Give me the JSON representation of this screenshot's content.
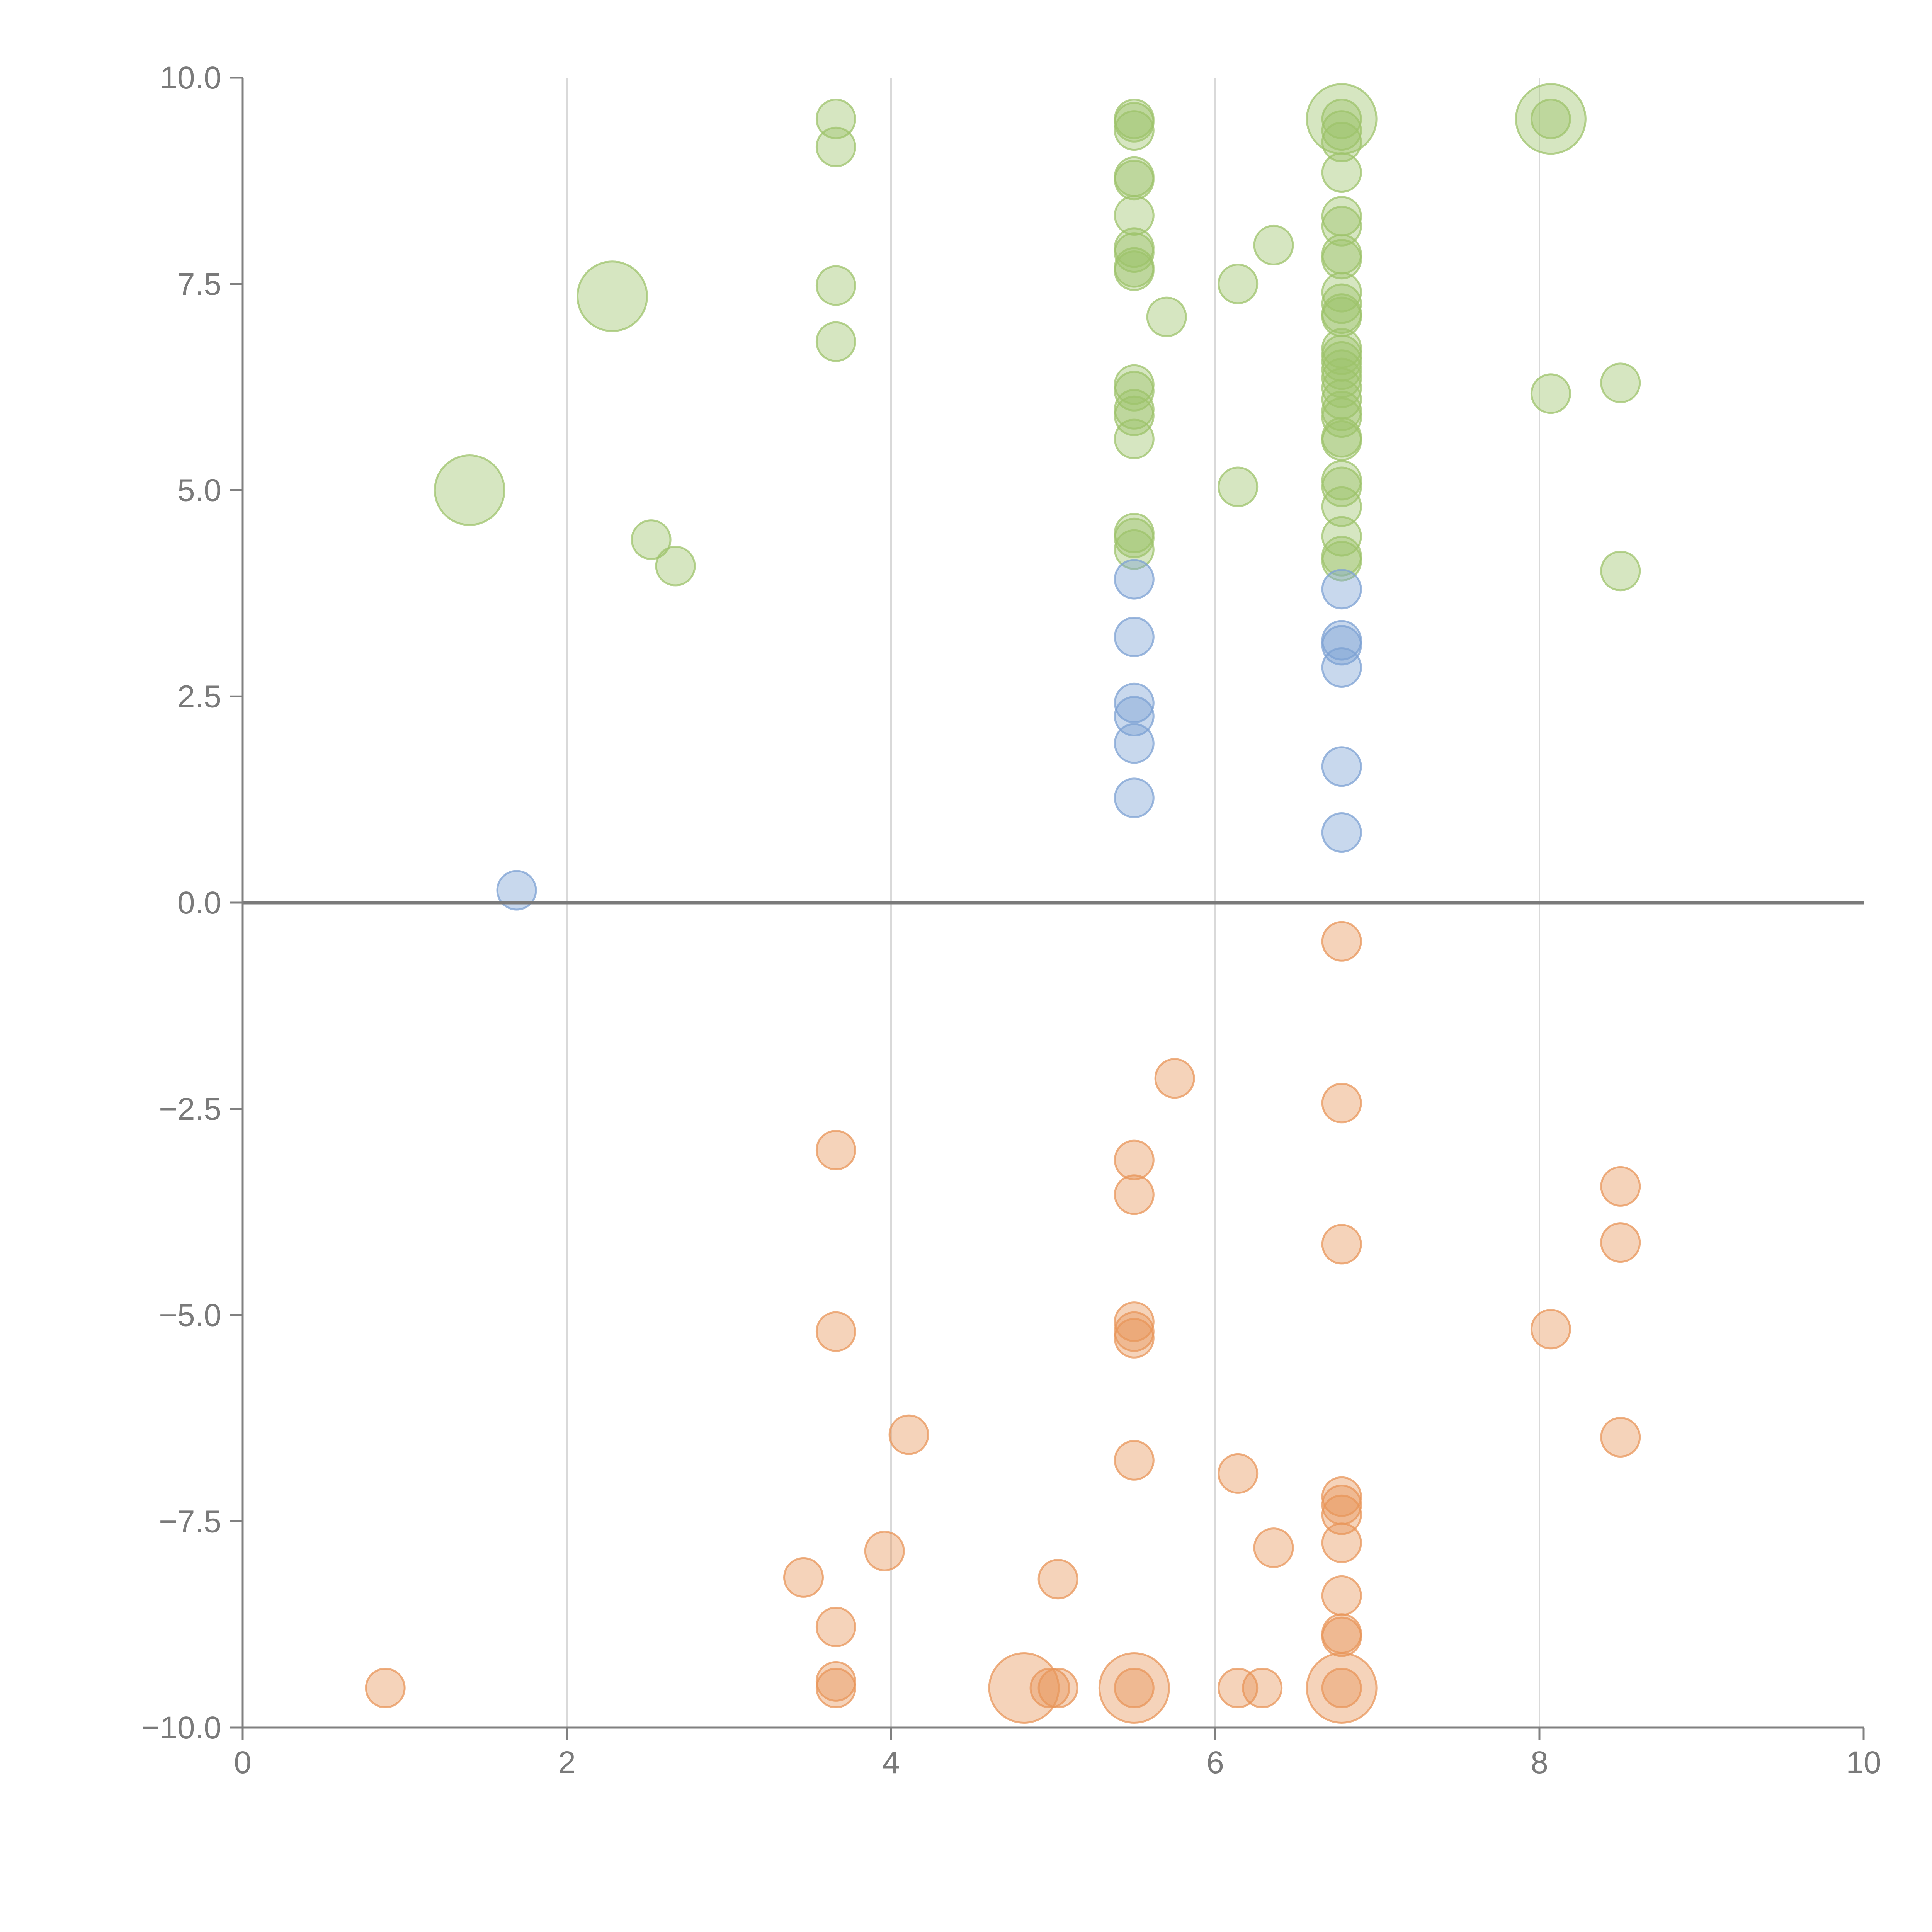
{
  "chart_data": {
    "type": "scatter",
    "title": "",
    "xlabel": "",
    "ylabel": "",
    "xlim": [
      0,
      10
    ],
    "ylim": [
      -10,
      10
    ],
    "x_ticks": [
      "0",
      "2",
      "4",
      "6",
      "8",
      "10"
    ],
    "y_ticks": [
      "10.0",
      "7.5",
      "5.0",
      "2.5",
      "0.0",
      "−2.5",
      "−5.0",
      "−7.5",
      "−10.0"
    ],
    "x_tick_values": [
      0,
      2,
      4,
      6,
      8,
      10
    ],
    "y_tick_values": [
      10,
      7.5,
      5,
      2.5,
      0,
      -2.5,
      -5,
      -7.5,
      -10
    ],
    "vertical_grid": true,
    "zero_line": true,
    "legend": "none",
    "colors": {
      "green": "#9dc36b",
      "blue": "#7da2d3",
      "orange": "#e8965a",
      "axis": "#808080",
      "grid": "#d9d9d9"
    },
    "series": [
      {
        "color": "#9dc36b",
        "points": [
          [
            1.4,
            5.0,
            2
          ],
          [
            2.28,
            7.35,
            2
          ],
          [
            2.52,
            4.4,
            1
          ],
          [
            2.67,
            4.08,
            1
          ],
          [
            3.66,
            9.5,
            1
          ],
          [
            3.66,
            9.16,
            1
          ],
          [
            3.66,
            7.48,
            1
          ],
          [
            3.66,
            6.8,
            1
          ],
          [
            5.5,
            9.5,
            1
          ],
          [
            5.5,
            9.46,
            1
          ],
          [
            5.5,
            9.36,
            1
          ],
          [
            5.5,
            8.8,
            1
          ],
          [
            5.5,
            8.76,
            1
          ],
          [
            5.5,
            8.33,
            1
          ],
          [
            5.5,
            7.94,
            1
          ],
          [
            5.5,
            7.88,
            1
          ],
          [
            5.5,
            7.7,
            1
          ],
          [
            5.5,
            7.66,
            1
          ],
          [
            5.5,
            6.28,
            1
          ],
          [
            5.5,
            6.2,
            1
          ],
          [
            5.5,
            5.98,
            1
          ],
          [
            5.5,
            5.9,
            1
          ],
          [
            5.5,
            5.62,
            1
          ],
          [
            5.5,
            4.48,
            1
          ],
          [
            5.5,
            4.42,
            1
          ],
          [
            5.5,
            4.28,
            1
          ],
          [
            5.7,
            7.1,
            1
          ],
          [
            6.14,
            7.5,
            1
          ],
          [
            6.14,
            5.04,
            1
          ],
          [
            6.36,
            7.97,
            1
          ],
          [
            6.78,
            9.5,
            2
          ],
          [
            6.78,
            9.5,
            1
          ],
          [
            6.78,
            9.36,
            1
          ],
          [
            6.78,
            9.22,
            1
          ],
          [
            6.78,
            8.85,
            1
          ],
          [
            6.78,
            8.32,
            1
          ],
          [
            6.78,
            8.2,
            1
          ],
          [
            6.78,
            7.86,
            1
          ],
          [
            6.78,
            7.8,
            1
          ],
          [
            6.78,
            7.4,
            1
          ],
          [
            6.78,
            7.26,
            1
          ],
          [
            6.78,
            7.14,
            1
          ],
          [
            6.78,
            7.1,
            1
          ],
          [
            6.78,
            6.72,
            1
          ],
          [
            6.78,
            6.64,
            1
          ],
          [
            6.78,
            6.56,
            1
          ],
          [
            6.78,
            6.46,
            1
          ],
          [
            6.78,
            6.36,
            1
          ],
          [
            6.78,
            6.24,
            1
          ],
          [
            6.78,
            6.1,
            1
          ],
          [
            6.78,
            5.96,
            1
          ],
          [
            6.78,
            5.88,
            1
          ],
          [
            6.78,
            5.64,
            1
          ],
          [
            6.78,
            5.6,
            1
          ],
          [
            6.78,
            5.12,
            1
          ],
          [
            6.78,
            5.04,
            1
          ],
          [
            6.78,
            4.8,
            1
          ],
          [
            6.78,
            4.44,
            1
          ],
          [
            6.78,
            4.2,
            1
          ],
          [
            6.78,
            4.14,
            1
          ],
          [
            8.07,
            9.5,
            2
          ],
          [
            8.07,
            9.5,
            1
          ],
          [
            8.07,
            6.17,
            1
          ],
          [
            8.5,
            6.3,
            1
          ],
          [
            8.5,
            4.02,
            1
          ]
        ]
      },
      {
        "color": "#7da2d3",
        "points": [
          [
            1.69,
            0.15,
            1
          ],
          [
            5.5,
            3.92,
            1
          ],
          [
            5.5,
            3.22,
            1
          ],
          [
            5.5,
            2.42,
            1
          ],
          [
            5.5,
            2.26,
            1
          ],
          [
            5.5,
            1.93,
            1
          ],
          [
            5.5,
            1.27,
            1
          ],
          [
            6.78,
            3.8,
            1
          ],
          [
            6.78,
            3.18,
            1
          ],
          [
            6.78,
            3.12,
            1
          ],
          [
            6.78,
            2.85,
            1
          ],
          [
            6.78,
            1.65,
            1
          ],
          [
            6.78,
            0.85,
            1
          ]
        ]
      },
      {
        "color": "#e8965a",
        "points": [
          [
            0.88,
            -9.52,
            1
          ],
          [
            3.46,
            -8.18,
            1
          ],
          [
            3.66,
            -3.0,
            1
          ],
          [
            3.66,
            -5.2,
            1
          ],
          [
            3.66,
            -8.78,
            1
          ],
          [
            3.66,
            -9.44,
            1
          ],
          [
            3.66,
            -9.52,
            1
          ],
          [
            3.96,
            -7.86,
            1
          ],
          [
            4.11,
            -6.45,
            1
          ],
          [
            4.82,
            -9.52,
            2
          ],
          [
            4.98,
            -9.52,
            1
          ],
          [
            5.03,
            -9.52,
            1
          ],
          [
            5.03,
            -8.2,
            1
          ],
          [
            5.5,
            -3.12,
            1
          ],
          [
            5.5,
            -3.54,
            1
          ],
          [
            5.5,
            -5.08,
            1
          ],
          [
            5.5,
            -5.2,
            1
          ],
          [
            5.5,
            -5.28,
            1
          ],
          [
            5.5,
            -6.76,
            1
          ],
          [
            5.5,
            -9.52,
            2
          ],
          [
            5.5,
            -9.52,
            1
          ],
          [
            5.75,
            -2.13,
            1
          ],
          [
            6.14,
            -6.92,
            1
          ],
          [
            6.14,
            -9.52,
            1
          ],
          [
            6.29,
            -9.52,
            1
          ],
          [
            6.36,
            -7.82,
            1
          ],
          [
            6.78,
            -0.47,
            1
          ],
          [
            6.78,
            -2.43,
            1
          ],
          [
            6.78,
            -4.14,
            1
          ],
          [
            6.78,
            -7.2,
            1
          ],
          [
            6.78,
            -7.3,
            1
          ],
          [
            6.78,
            -7.42,
            1
          ],
          [
            6.78,
            -7.76,
            1
          ],
          [
            6.78,
            -8.4,
            1
          ],
          [
            6.78,
            -8.86,
            1
          ],
          [
            6.78,
            -8.9,
            1
          ],
          [
            6.78,
            -9.52,
            2
          ],
          [
            6.78,
            -9.52,
            1
          ],
          [
            8.07,
            -5.17,
            1
          ],
          [
            8.5,
            -3.44,
            1
          ],
          [
            8.5,
            -4.12,
            1
          ],
          [
            8.5,
            -6.48,
            1
          ]
        ]
      }
    ]
  }
}
